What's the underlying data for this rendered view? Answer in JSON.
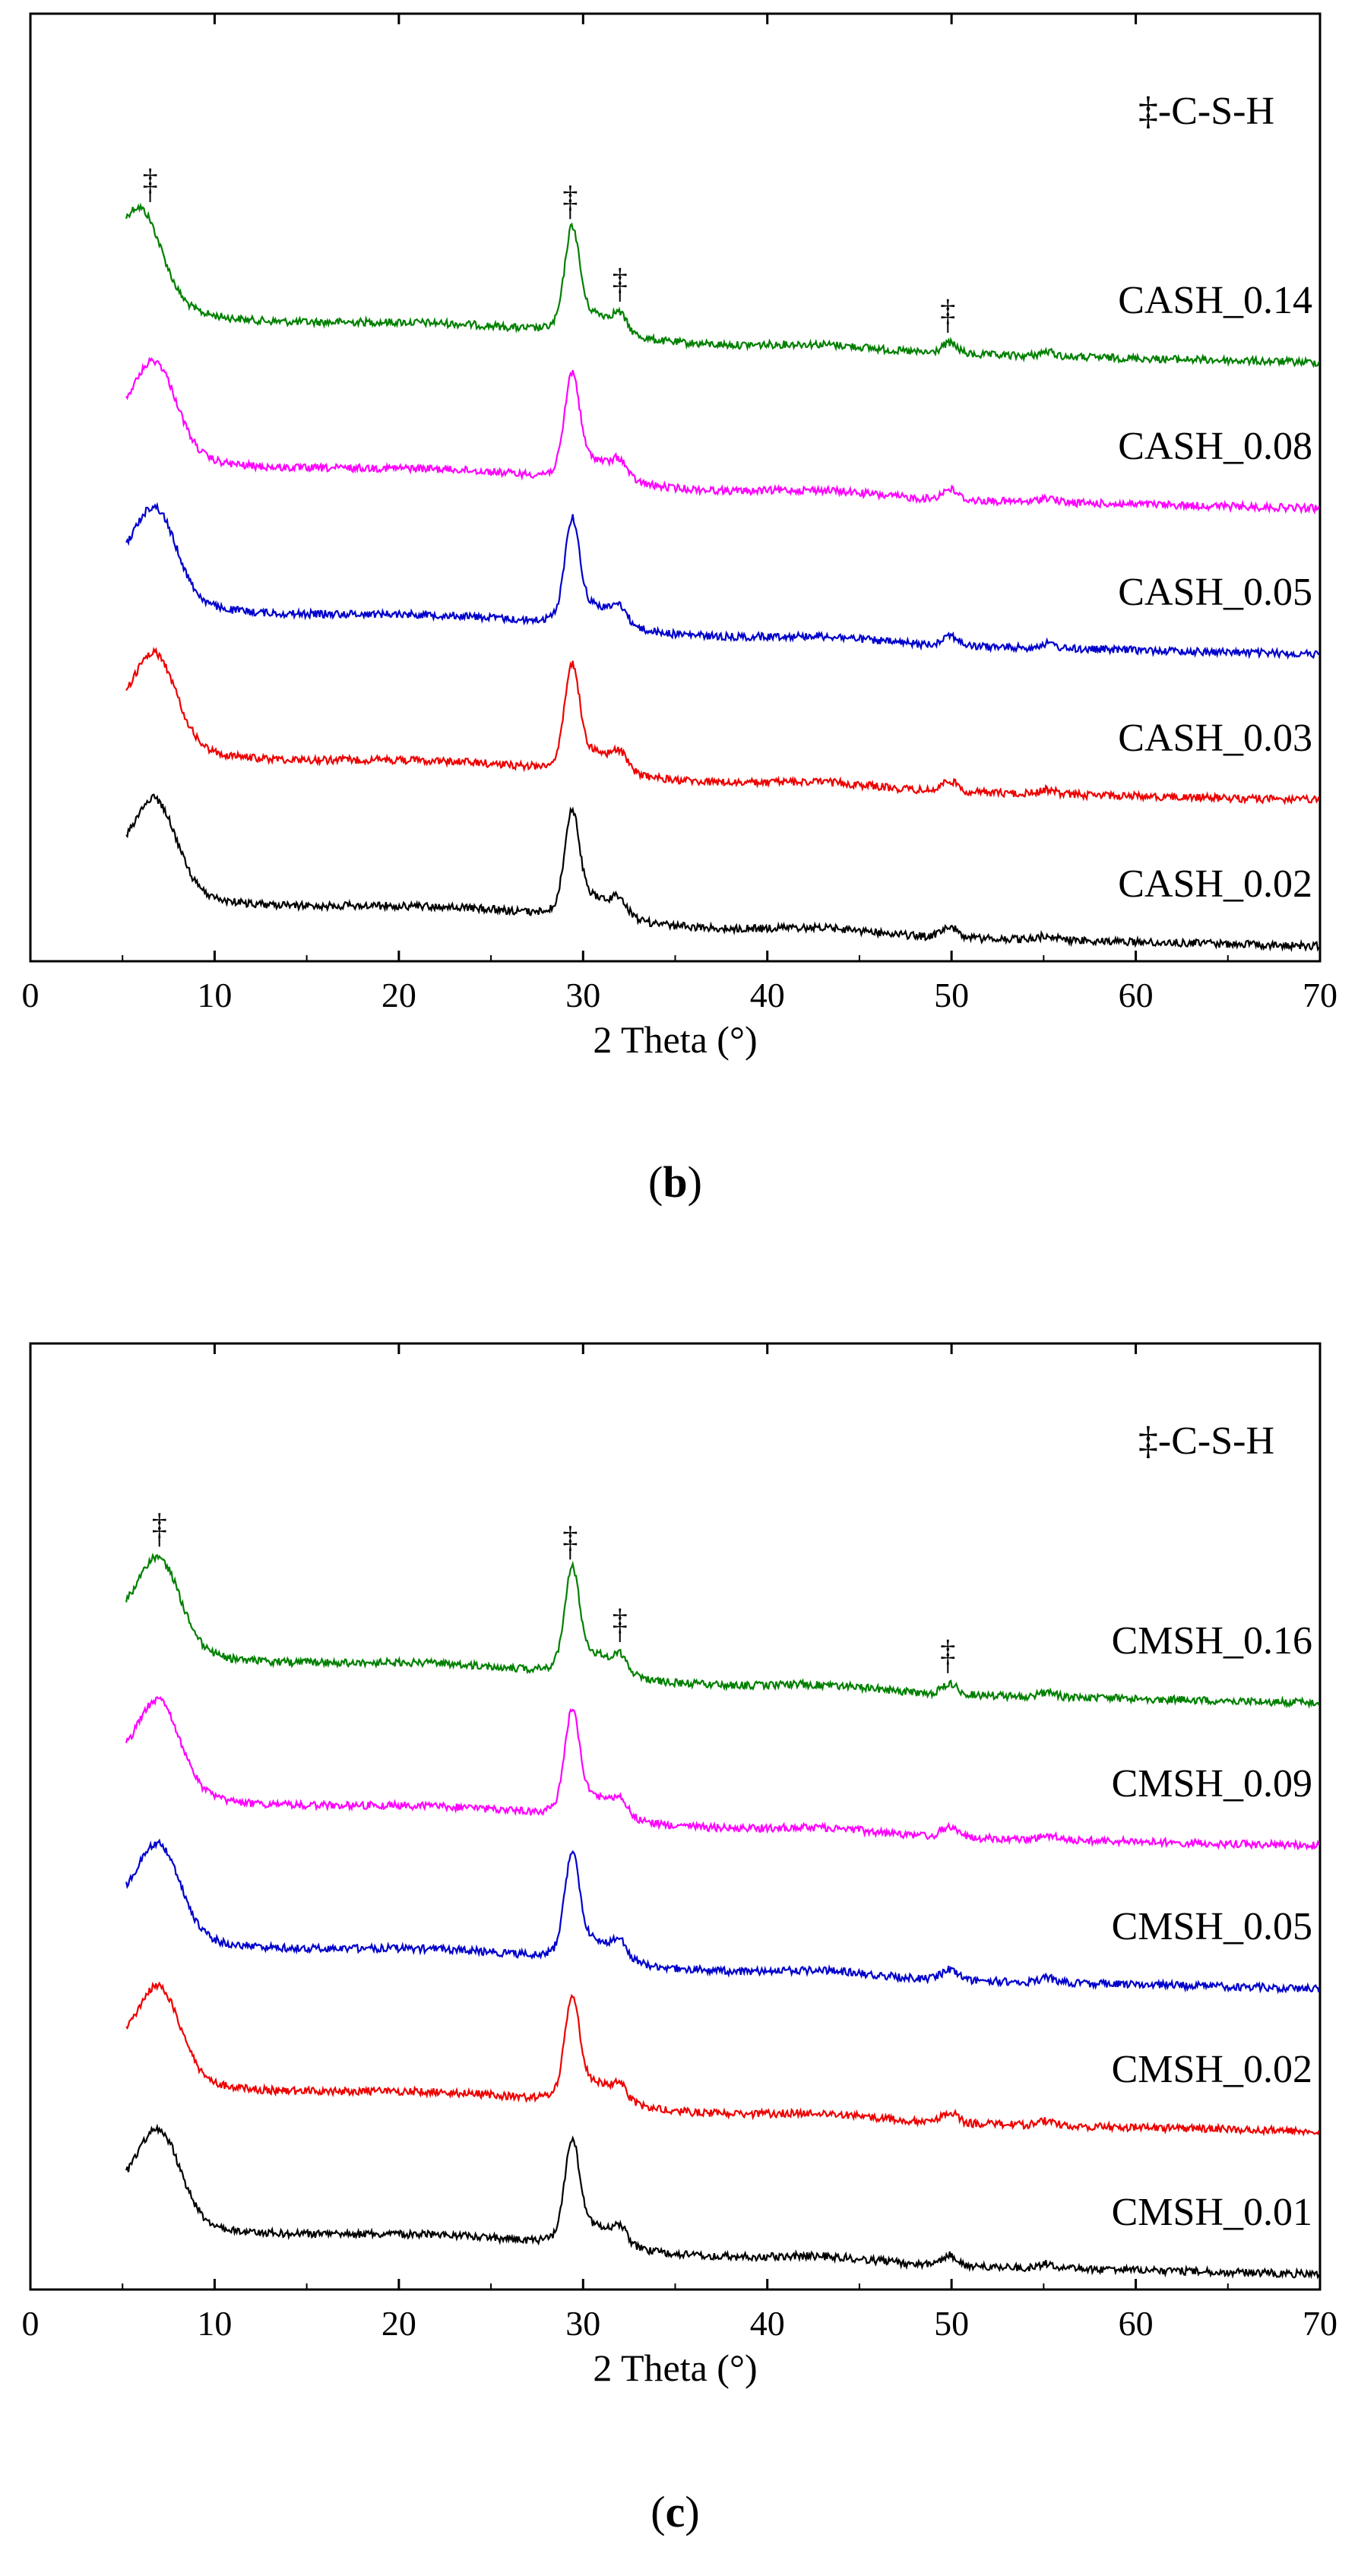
{
  "charts": [
    {
      "type": "line",
      "panel_label": {
        "open": "(",
        "letter": "b",
        "close": ")"
      },
      "legend": "‡-C-S-H",
      "xlabel": "2 Theta (°)",
      "ylabel": "",
      "xlim": [
        0,
        70
      ],
      "xticks": [
        0,
        10,
        20,
        30,
        40,
        50,
        60,
        70
      ],
      "yticks_shown": false,
      "marker_symbol": "‡",
      "peak_markers": [
        6.5,
        29.3,
        32.0,
        49.8
      ],
      "series": [
        {
          "name": "CASH_0.14",
          "color": "#008000",
          "offset": 4
        },
        {
          "name": "CASH_0.08",
          "color": "#ff00ff",
          "offset": 3
        },
        {
          "name": "CASH_0.05",
          "color": "#0000cc",
          "offset": 2
        },
        {
          "name": "CASH_0.03",
          "color": "#ee0000",
          "offset": 1
        },
        {
          "name": "CASH_0.02",
          "color": "#000000",
          "offset": 0
        }
      ]
    },
    {
      "type": "line",
      "panel_label": {
        "open": "(",
        "letter": "c",
        "close": ")"
      },
      "legend": "‡-C-S-H",
      "xlabel": "2 Theta (°)",
      "ylabel": "",
      "xlim": [
        0,
        70
      ],
      "xticks": [
        0,
        10,
        20,
        30,
        40,
        50,
        60,
        70
      ],
      "yticks_shown": false,
      "marker_symbol": "‡",
      "peak_markers": [
        7.0,
        29.3,
        32.0,
        49.8
      ],
      "series": [
        {
          "name": "CMSH_0.16",
          "color": "#008000",
          "offset": 4
        },
        {
          "name": "CMSH_0.09",
          "color": "#ff00ff",
          "offset": 3
        },
        {
          "name": "CMSH_0.05",
          "color": "#0000cc",
          "offset": 2
        },
        {
          "name": "CMSH_0.02",
          "color": "#ee0000",
          "offset": 1
        },
        {
          "name": "CMSH_0.01",
          "color": "#000000",
          "offset": 0
        }
      ]
    }
  ]
}
